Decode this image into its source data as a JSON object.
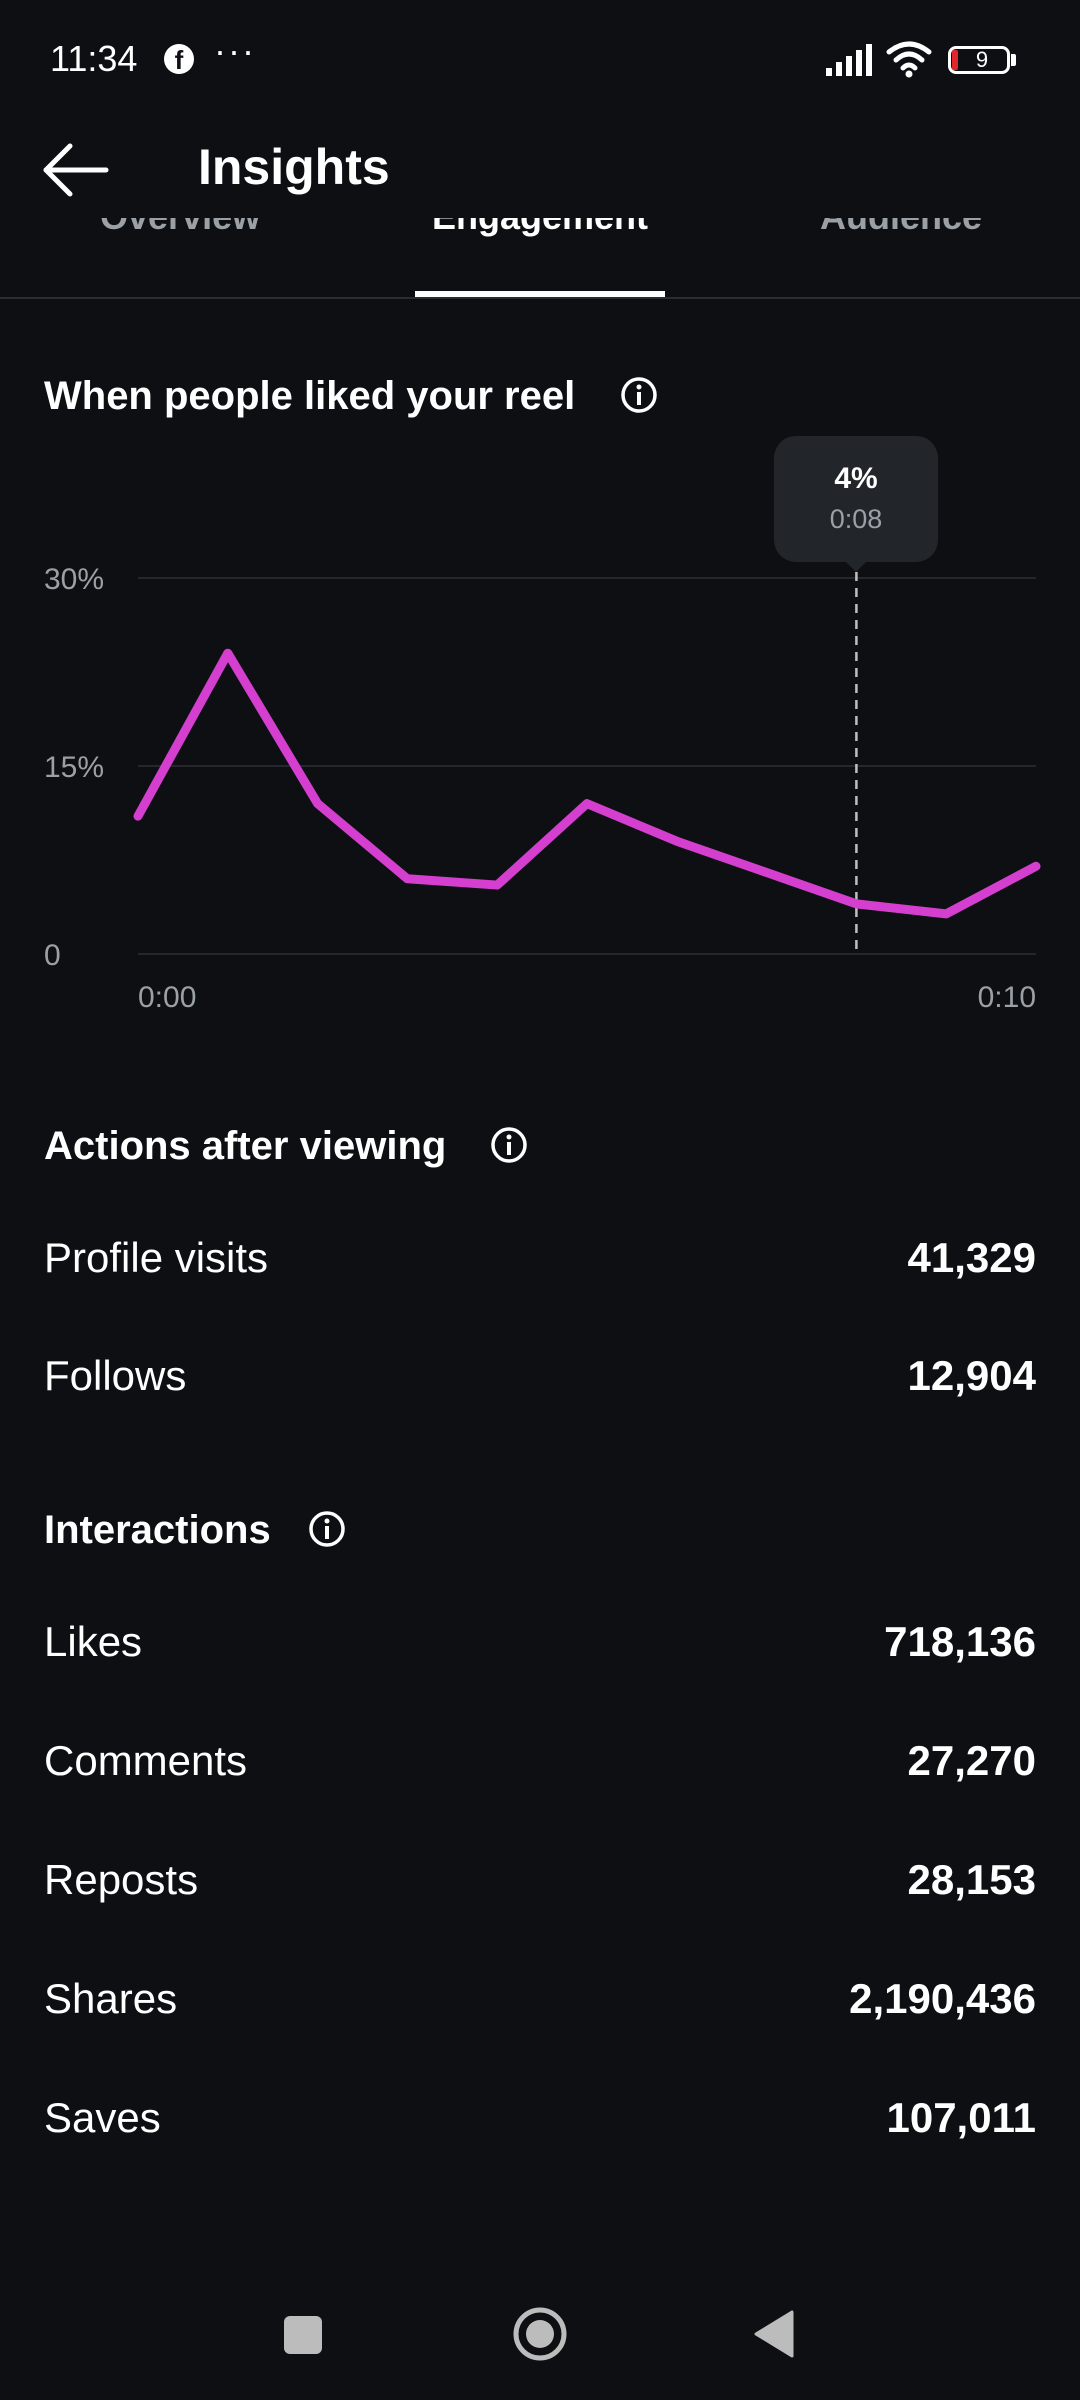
{
  "status_bar": {
    "time": "11:34",
    "app_icon": "f",
    "dots": "···",
    "battery": "9",
    "battery_color": "#e0262b"
  },
  "header": {
    "title": "Insights"
  },
  "tabs": [
    {
      "label": "Overview",
      "active": false
    },
    {
      "label": "Engagement",
      "active": true
    },
    {
      "label": "Audience",
      "active": false
    }
  ],
  "liked_chart": {
    "title": "When people liked your reel",
    "tooltip": {
      "value": "4%",
      "time": "0:08"
    },
    "chart_data": {
      "type": "line",
      "x_labels": [
        "0:00",
        "0:10"
      ],
      "y_ticks": [
        "30%",
        "15%",
        "0"
      ],
      "ylim": [
        0,
        30
      ],
      "series": [
        {
          "values": [
            11,
            24,
            12,
            6,
            5.5,
            12,
            9,
            6.5,
            4,
            3.2,
            7
          ]
        }
      ],
      "line_color": "#d43fd0",
      "grid": true,
      "highlight_index": 8
    }
  },
  "actions": {
    "title": "Actions after viewing",
    "rows": [
      {
        "label": "Profile visits",
        "value": "41,329"
      },
      {
        "label": "Follows",
        "value": "12,904"
      }
    ]
  },
  "interactions": {
    "title": "Interactions",
    "rows": [
      {
        "label": "Likes",
        "value": "718,136"
      },
      {
        "label": "Comments",
        "value": "27,270"
      },
      {
        "label": "Reposts",
        "value": "28,153"
      },
      {
        "label": "Shares",
        "value": "2,190,436"
      },
      {
        "label": "Saves",
        "value": "107,011"
      }
    ]
  }
}
